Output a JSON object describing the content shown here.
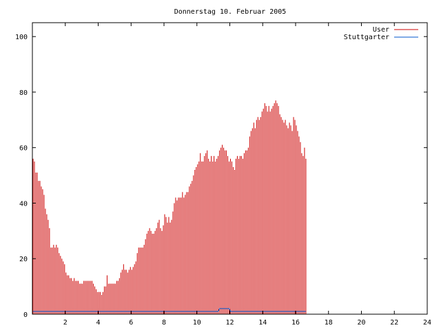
{
  "chart_data": {
    "type": "bar",
    "title": "Donnerstag 10. Februar 2005",
    "xlabel": "",
    "ylabel": "",
    "xlim": [
      0,
      24
    ],
    "ylim": [
      0,
      105
    ],
    "x_ticks": [
      2,
      4,
      6,
      8,
      10,
      12,
      14,
      16,
      18,
      20,
      22,
      24
    ],
    "y_ticks": [
      0,
      20,
      40,
      60,
      80,
      100
    ],
    "legend_position": "top-right",
    "grid": false,
    "hourly_samples": 12,
    "series": [
      {
        "name": "User",
        "color": "#cc0000",
        "values": [
          56,
          55,
          51,
          51,
          48,
          48,
          46,
          45,
          43,
          38,
          36,
          34,
          31,
          24,
          24,
          25,
          24,
          25,
          24,
          22,
          21,
          20,
          19,
          18,
          15,
          14,
          14,
          13,
          13,
          12,
          13,
          12,
          12,
          12,
          11,
          11,
          11,
          12,
          12,
          12,
          12,
          12,
          12,
          12,
          11,
          10,
          9,
          8,
          8,
          8,
          7,
          8,
          10,
          10,
          14,
          11,
          11,
          11,
          11,
          11,
          11,
          12,
          12,
          13,
          15,
          16,
          18,
          16,
          16,
          15,
          16,
          17,
          16,
          17,
          18,
          19,
          22,
          24,
          24,
          24,
          24,
          25,
          27,
          29,
          30,
          31,
          30,
          29,
          29,
          30,
          31,
          33,
          34,
          31,
          30,
          32,
          36,
          35,
          33,
          35,
          33,
          34,
          37,
          40,
          42,
          41,
          42,
          42,
          42,
          44,
          42,
          43,
          44,
          44,
          46,
          47,
          48,
          50,
          52,
          53,
          54,
          55,
          58,
          55,
          55,
          57,
          58,
          59,
          56,
          55,
          57,
          55,
          57,
          55,
          56,
          57,
          59,
          60,
          61,
          60,
          59,
          59,
          57,
          55,
          56,
          55,
          53,
          52,
          56,
          57,
          56,
          57,
          57,
          56,
          58,
          59,
          59,
          60,
          64,
          66,
          67,
          69,
          67,
          70,
          71,
          70,
          71,
          73,
          74,
          76,
          75,
          73,
          75,
          73,
          74,
          75,
          76,
          77,
          76,
          75,
          72,
          71,
          70,
          69,
          70,
          68,
          67,
          69,
          68,
          66,
          71,
          70,
          68,
          66,
          64,
          62,
          58,
          57,
          60,
          56
        ]
      },
      {
        "name": "Stuttgarter",
        "color": "#0055cc",
        "values": [
          1,
          1,
          1,
          1,
          1,
          1,
          1,
          1,
          1,
          1,
          1,
          1,
          1,
          1,
          1,
          1,
          1,
          1,
          1,
          1,
          1,
          1,
          1,
          1,
          1,
          1,
          1,
          1,
          1,
          1,
          1,
          1,
          1,
          1,
          1,
          1,
          1,
          1,
          1,
          1,
          1,
          1,
          1,
          1,
          1,
          1,
          1,
          1,
          1,
          1,
          1,
          1,
          1,
          1,
          1,
          1,
          1,
          1,
          1,
          1,
          1,
          1,
          1,
          1,
          1,
          1,
          1,
          1,
          1,
          1,
          1,
          1,
          1,
          1,
          1,
          1,
          1,
          1,
          1,
          1,
          1,
          1,
          1,
          1,
          1,
          1,
          1,
          1,
          1,
          1,
          1,
          1,
          1,
          1,
          1,
          1,
          1,
          1,
          1,
          1,
          1,
          1,
          1,
          1,
          1,
          1,
          1,
          1,
          1,
          1,
          1,
          1,
          1,
          1,
          1,
          1,
          1,
          1,
          1,
          1,
          1,
          1,
          1,
          1,
          1,
          1,
          1,
          1,
          1,
          1,
          1,
          1,
          1,
          1,
          1,
          1,
          2,
          2,
          2,
          2,
          2,
          2,
          2,
          2,
          1,
          1,
          1,
          1,
          1,
          1,
          1,
          1,
          1,
          1,
          1,
          1,
          1,
          1,
          1,
          1,
          1,
          1,
          1,
          1,
          1,
          1,
          1,
          1,
          1,
          1,
          1,
          1,
          1,
          1,
          1,
          1,
          1,
          1,
          1,
          1,
          1,
          1,
          1,
          1,
          1,
          1,
          1,
          1,
          1,
          1,
          1,
          1,
          1,
          1,
          1,
          1,
          1,
          1,
          1,
          1
        ]
      }
    ]
  }
}
